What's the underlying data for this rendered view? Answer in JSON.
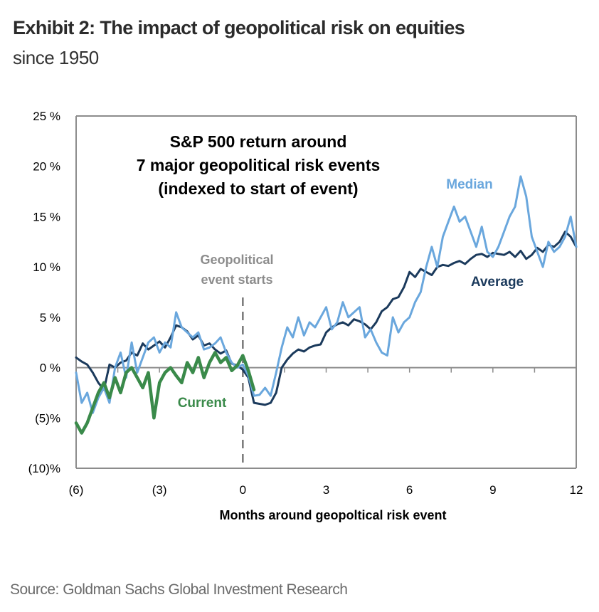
{
  "header": {
    "title": "Exhibit 2: The impact of geopolitical risk on equities",
    "subtitle": "since 1950"
  },
  "footer": {
    "source": "Source: Goldman Sachs Global Investment Research"
  },
  "chart_data": {
    "type": "line",
    "title": "S&P 500 return around 7 major geopolitical risk events (indexed to start of event)",
    "title_lines": [
      "S&P 500 return around",
      "7 major geopolitical risk events",
      "(indexed to start of event)"
    ],
    "xlabel": "Months around geopoltical risk event",
    "ylabel": "",
    "xlim": [
      -6,
      12
    ],
    "ylim": [
      -10,
      25
    ],
    "x_ticks": [
      -6,
      -3,
      0,
      3,
      6,
      9,
      12
    ],
    "x_tick_labels": [
      "(6)",
      "(3)",
      "0",
      "3",
      "6",
      "9",
      "12"
    ],
    "y_ticks": [
      25,
      20,
      15,
      10,
      5,
      0,
      -5,
      -10
    ],
    "y_tick_labels": [
      "25 %",
      "20 %",
      "15 %",
      "10 %",
      "5 %",
      "0 %",
      "(5)%",
      "(10)%"
    ],
    "grid": false,
    "zero_line": true,
    "event_marker": {
      "x": 0,
      "label_lines": [
        "Geopolitical",
        "event starts"
      ],
      "style": "dashed"
    },
    "colors": {
      "median": "#6aa7dd",
      "average": "#1b3a5c",
      "current": "#3a8a4a",
      "event_line": "#777777",
      "axis": "#8c8c8c"
    },
    "series": [
      {
        "name": "Average",
        "color": "#1b3a5c",
        "x": [
          -6.0,
          -5.8,
          -5.6,
          -5.4,
          -5.2,
          -5.0,
          -4.8,
          -4.6,
          -4.4,
          -4.2,
          -4.0,
          -3.8,
          -3.6,
          -3.4,
          -3.2,
          -3.0,
          -2.8,
          -2.6,
          -2.4,
          -2.2,
          -2.0,
          -1.8,
          -1.6,
          -1.4,
          -1.2,
          -1.0,
          -0.8,
          -0.6,
          -0.4,
          -0.2,
          0.0,
          0.2,
          0.4,
          0.6,
          0.8,
          1.0,
          1.2,
          1.4,
          1.6,
          1.8,
          2.0,
          2.2,
          2.4,
          2.6,
          2.8,
          3.0,
          3.2,
          3.4,
          3.6,
          3.8,
          4.0,
          4.2,
          4.4,
          4.6,
          4.8,
          5.0,
          5.2,
          5.4,
          5.6,
          5.8,
          6.0,
          6.2,
          6.4,
          6.6,
          6.8,
          7.0,
          7.2,
          7.4,
          7.6,
          7.8,
          8.0,
          8.2,
          8.4,
          8.6,
          8.8,
          9.0,
          9.2,
          9.4,
          9.6,
          9.8,
          10.0,
          10.2,
          10.4,
          10.6,
          10.8,
          11.0,
          11.2,
          11.4,
          11.6,
          11.8,
          12.0
        ],
        "values": [
          1.0,
          0.6,
          0.3,
          -0.5,
          -1.5,
          -2.2,
          0.3,
          0.0,
          0.5,
          0.7,
          1.5,
          1.2,
          2.4,
          1.8,
          2.2,
          2.6,
          2.0,
          3.0,
          4.2,
          4.0,
          3.6,
          2.8,
          3.2,
          2.2,
          2.4,
          1.8,
          1.4,
          1.7,
          0.4,
          0.2,
          -0.2,
          -1.0,
          -3.5,
          -3.6,
          -3.7,
          -3.5,
          -2.5,
          0.0,
          0.8,
          1.4,
          1.8,
          1.6,
          2.0,
          2.2,
          2.3,
          3.5,
          4.0,
          4.3,
          4.5,
          4.2,
          4.8,
          4.6,
          4.3,
          3.8,
          4.5,
          5.6,
          6.0,
          6.8,
          7.0,
          8.0,
          9.5,
          9.0,
          9.8,
          9.5,
          9.2,
          10.0,
          10.2,
          10.1,
          10.4,
          10.6,
          10.3,
          10.8,
          11.2,
          11.3,
          11.0,
          11.4,
          11.3,
          11.2,
          11.5,
          11.0,
          11.6,
          10.8,
          11.2,
          11.9,
          11.5,
          12.2,
          12.0,
          12.5,
          13.5,
          13.0,
          12.0
        ]
      },
      {
        "name": "Median",
        "color": "#6aa7dd",
        "x": [
          -6.0,
          -5.8,
          -5.6,
          -5.4,
          -5.2,
          -5.0,
          -4.8,
          -4.6,
          -4.4,
          -4.2,
          -4.0,
          -3.8,
          -3.6,
          -3.4,
          -3.2,
          -3.0,
          -2.8,
          -2.6,
          -2.4,
          -2.2,
          -2.0,
          -1.8,
          -1.6,
          -1.4,
          -1.2,
          -1.0,
          -0.8,
          -0.6,
          -0.4,
          -0.2,
          0.0,
          0.2,
          0.4,
          0.6,
          0.8,
          1.0,
          1.2,
          1.4,
          1.6,
          1.8,
          2.0,
          2.2,
          2.4,
          2.6,
          2.8,
          3.0,
          3.2,
          3.4,
          3.6,
          3.8,
          4.0,
          4.2,
          4.4,
          4.6,
          4.8,
          5.0,
          5.2,
          5.4,
          5.6,
          5.8,
          6.0,
          6.2,
          6.4,
          6.6,
          6.8,
          7.0,
          7.2,
          7.4,
          7.6,
          7.8,
          8.0,
          8.2,
          8.4,
          8.6,
          8.8,
          9.0,
          9.2,
          9.4,
          9.6,
          9.8,
          10.0,
          10.2,
          10.4,
          10.6,
          10.8,
          11.0,
          11.2,
          11.4,
          11.6,
          11.8,
          12.0
        ],
        "values": [
          -0.5,
          -3.5,
          -2.5,
          -4.5,
          -3.0,
          -2.0,
          -3.5,
          0.0,
          1.5,
          -1.0,
          2.5,
          -0.5,
          1.0,
          2.5,
          3.0,
          1.5,
          2.5,
          2.0,
          5.5,
          4.0,
          3.5,
          3.0,
          3.5,
          1.8,
          2.0,
          2.4,
          3.0,
          1.5,
          0.5,
          0.0,
          0.3,
          -0.8,
          -2.8,
          -2.7,
          -2.0,
          -2.8,
          -0.5,
          2.0,
          4.0,
          3.0,
          5.0,
          3.2,
          4.5,
          4.0,
          5.0,
          6.0,
          3.8,
          4.5,
          6.5,
          5.0,
          5.5,
          6.0,
          3.0,
          3.8,
          2.5,
          1.5,
          1.2,
          5.0,
          3.5,
          4.5,
          5.0,
          6.5,
          7.5,
          10.0,
          12.0,
          10.0,
          13.0,
          14.5,
          16.0,
          14.5,
          15.0,
          13.5,
          12.0,
          14.0,
          11.5,
          11.0,
          12.0,
          13.5,
          15.0,
          16.0,
          19.0,
          17.0,
          13.0,
          11.5,
          10.0,
          12.5,
          11.5,
          12.0,
          13.0,
          15.0,
          12.0
        ]
      },
      {
        "name": "Current",
        "color": "#3a8a4a",
        "x": [
          -6.0,
          -5.8,
          -5.6,
          -5.4,
          -5.2,
          -5.0,
          -4.8,
          -4.6,
          -4.4,
          -4.2,
          -4.0,
          -3.8,
          -3.6,
          -3.4,
          -3.2,
          -3.0,
          -2.8,
          -2.6,
          -2.4,
          -2.2,
          -2.0,
          -1.8,
          -1.6,
          -1.4,
          -1.2,
          -1.0,
          -0.8,
          -0.6,
          -0.4,
          -0.2,
          0.0,
          0.2,
          0.4
        ],
        "values": [
          -5.5,
          -6.5,
          -5.5,
          -4.0,
          -2.5,
          -1.5,
          -3.0,
          -1.0,
          -2.5,
          -0.5,
          0.0,
          -1.0,
          -2.0,
          -0.5,
          -5.0,
          -1.5,
          -0.5,
          0.0,
          -0.8,
          -1.5,
          0.5,
          -0.5,
          1.0,
          -1.0,
          0.5,
          1.5,
          0.5,
          1.0,
          -0.3,
          0.2,
          1.2,
          -0.3,
          -2.2
        ]
      }
    ],
    "annotations": [
      {
        "text": "Median",
        "series": "Median"
      },
      {
        "text": "Average",
        "series": "Average"
      },
      {
        "text": "Current",
        "series": "Current"
      }
    ]
  }
}
